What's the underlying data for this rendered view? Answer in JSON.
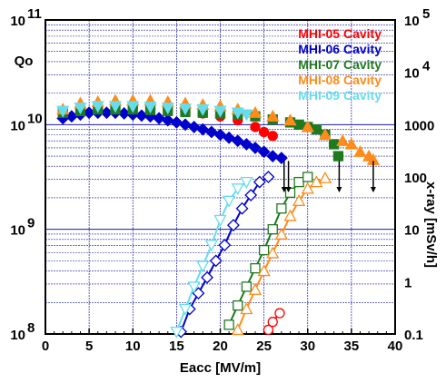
{
  "chart_data": {
    "type": "scatter",
    "title": "",
    "xlabel": "Eacc  [MV/m]",
    "ylabel_left": "Qo",
    "ylabel_right": "x-ray  [mSv/h]",
    "xlim": [
      0,
      40
    ],
    "ylim_left": [
      100000000.0,
      100000000000.0
    ],
    "ylim_right": [
      0.1,
      100000
    ],
    "y_left_scale": "log",
    "y_right_scale": "log",
    "grid": true,
    "legend_position": "top-right",
    "x_ticks": [
      "0",
      "5",
      "10",
      "15",
      "20",
      "25",
      "30",
      "35",
      "40"
    ],
    "y_left_ticks": [
      {
        "base": "10",
        "exp": "8"
      },
      {
        "base": "10",
        "exp": "9"
      },
      {
        "base": "10",
        "exp": "10"
      },
      {
        "base": "10",
        "exp": "11"
      }
    ],
    "y_right_ticks": [
      {
        "base": "",
        "exp": "",
        "text": "0.1"
      },
      {
        "base": "",
        "exp": "",
        "text": "1"
      },
      {
        "base": "",
        "exp": "",
        "text": "10"
      },
      {
        "base": "",
        "exp": "",
        "text": "100"
      },
      {
        "base": "",
        "exp": "",
        "text": "1000"
      },
      {
        "base": "10",
        "exp": "4",
        "text": ""
      },
      {
        "base": "10",
        "exp": "5",
        "text": ""
      }
    ],
    "series": [
      {
        "name": "MHI-05 Cavity",
        "color": "#ff0000",
        "marker": "circle",
        "q0": [
          [
            2,
            13000000000.0
          ],
          [
            4,
            14000000000.0
          ],
          [
            6,
            14500000000.0
          ],
          [
            8,
            14500000000.0
          ],
          [
            10,
            14500000000.0
          ],
          [
            12,
            14200000000.0
          ],
          [
            14,
            13800000000.0
          ],
          [
            16,
            13300000000.0
          ],
          [
            18,
            12800000000.0
          ],
          [
            20,
            12000000000.0
          ],
          [
            22,
            11000000000.0
          ],
          [
            24,
            9500000000.0
          ],
          [
            25,
            8500000000.0
          ],
          [
            26,
            7800000000.0
          ]
        ],
        "xray": [
          [
            25.5,
            0.12
          ],
          [
            26,
            0.17
          ],
          [
            26.8,
            0.25
          ]
        ],
        "xray_color": "#ff0000"
      },
      {
        "name": "MHI-06 Cavity",
        "color": "#0000cc",
        "marker": "diamond",
        "q0": [
          [
            2,
            11500000000.0
          ],
          [
            3,
            12000000000.0
          ],
          [
            4,
            12500000000.0
          ],
          [
            5,
            13000000000.0
          ],
          [
            6,
            13000000000.0
          ],
          [
            7,
            13000000000.0
          ],
          [
            8,
            13000000000.0
          ],
          [
            9,
            12800000000.0
          ],
          [
            10,
            12500000000.0
          ],
          [
            11,
            12200000000.0
          ],
          [
            12,
            12000000000.0
          ],
          [
            13,
            11500000000.0
          ],
          [
            14,
            11000000000.0
          ],
          [
            15,
            10500000000.0
          ],
          [
            16,
            10000000000.0
          ],
          [
            17,
            9500000000.0
          ],
          [
            18,
            9000000000.0
          ],
          [
            19,
            8500000000.0
          ],
          [
            20,
            8000000000.0
          ],
          [
            21,
            7500000000.0
          ],
          [
            22,
            7000000000.0
          ],
          [
            23,
            6500000000.0
          ],
          [
            24,
            6000000000.0
          ],
          [
            25,
            5500000000.0
          ],
          [
            26,
            5000000000.0
          ],
          [
            27,
            4800000000.0
          ]
        ],
        "xray": [
          [
            15.5,
            0.11
          ],
          [
            16.5,
            0.3
          ],
          [
            17.5,
            0.6
          ],
          [
            18.5,
            1.2
          ],
          [
            19.5,
            2.5
          ],
          [
            20.5,
            5
          ],
          [
            21.5,
            12
          ],
          [
            22.5,
            25
          ],
          [
            23.5,
            45
          ],
          [
            24.5,
            80
          ],
          [
            25.5,
            100
          ]
        ],
        "xray_color": "#0000cc"
      },
      {
        "name": "MHI-07 Cavity",
        "color": "#1f7a1f",
        "marker": "square",
        "q0": [
          [
            2,
            13000000000.0
          ],
          [
            4,
            13500000000.0
          ],
          [
            6,
            14000000000.0
          ],
          [
            8,
            14000000000.0
          ],
          [
            10,
            14000000000.0
          ],
          [
            12,
            13800000000.0
          ],
          [
            14,
            13500000000.0
          ],
          [
            16,
            13200000000.0
          ],
          [
            18,
            13000000000.0
          ],
          [
            20,
            12800000000.0
          ],
          [
            22,
            12500000000.0
          ],
          [
            24,
            12000000000.0
          ],
          [
            26,
            11200000000.0
          ],
          [
            28,
            10500000000.0
          ],
          [
            29,
            10000000000.0
          ],
          [
            30,
            9500000000.0
          ],
          [
            31,
            9000000000.0
          ],
          [
            32,
            8000000000.0
          ],
          [
            33,
            6500000000.0
          ],
          [
            33.5,
            5000000000.0
          ]
        ],
        "xray": [
          [
            21,
            0.15
          ],
          [
            22,
            0.35
          ],
          [
            23,
            0.8
          ],
          [
            24,
            1.8
          ],
          [
            25,
            4
          ],
          [
            26,
            10
          ],
          [
            27,
            25
          ],
          [
            28,
            50
          ],
          [
            29,
            80
          ],
          [
            30,
            100
          ]
        ],
        "xray_color": "#1f7a1f"
      },
      {
        "name": "MHI-08 Cavity",
        "color": "#ff8c1a",
        "marker": "triangle",
        "q0": [
          [
            2,
            14000000000.0
          ],
          [
            4,
            16000000000.0
          ],
          [
            6,
            16500000000.0
          ],
          [
            8,
            17000000000.0
          ],
          [
            10,
            17000000000.0
          ],
          [
            12,
            17000000000.0
          ],
          [
            14,
            16500000000.0
          ],
          [
            16,
            16000000000.0
          ],
          [
            18,
            15500000000.0
          ],
          [
            20,
            15000000000.0
          ],
          [
            22,
            14000000000.0
          ],
          [
            24,
            13000000000.0
          ],
          [
            26,
            12000000000.0
          ],
          [
            28,
            11000000000.0
          ],
          [
            30,
            9500000000.0
          ],
          [
            32,
            8000000000.0
          ],
          [
            34,
            7000000000.0
          ],
          [
            35,
            6500000000.0
          ],
          [
            36,
            5500000000.0
          ],
          [
            37,
            5000000000.0
          ],
          [
            37.5,
            4600000000.0
          ]
        ],
        "xray": [
          [
            22,
            0.12
          ],
          [
            23,
            0.3
          ],
          [
            24,
            0.7
          ],
          [
            25,
            1.6
          ],
          [
            26,
            3.5
          ],
          [
            27,
            8
          ],
          [
            28,
            18
          ],
          [
            29,
            35
          ],
          [
            30,
            60
          ],
          [
            31,
            80
          ],
          [
            32,
            95
          ]
        ],
        "xray_color": "#ff8c1a"
      },
      {
        "name": "MHI-09 Cavity",
        "color": "#66ddee",
        "marker": "triangle-down",
        "q0": [
          [
            2,
            13500000000.0
          ],
          [
            4,
            14500000000.0
          ],
          [
            6,
            15000000000.0
          ],
          [
            8,
            15000000000.0
          ],
          [
            10,
            15000000000.0
          ],
          [
            12,
            14800000000.0
          ],
          [
            14,
            14500000000.0
          ],
          [
            16,
            14200000000.0
          ],
          [
            18,
            14000000000.0
          ],
          [
            20,
            13500000000.0
          ],
          [
            22,
            13000000000.0
          ],
          [
            23,
            12500000000.0
          ]
        ],
        "xray": [
          [
            15,
            0.11
          ],
          [
            16,
            0.3
          ],
          [
            17,
            0.8
          ],
          [
            18,
            2
          ],
          [
            19,
            5
          ],
          [
            20,
            15
          ],
          [
            21,
            35
          ],
          [
            22,
            60
          ],
          [
            23,
            80
          ]
        ],
        "xray_color": "#66ddee"
      }
    ],
    "quench_arrows": [
      27.3,
      27.8,
      33.6,
      37.5
    ]
  }
}
